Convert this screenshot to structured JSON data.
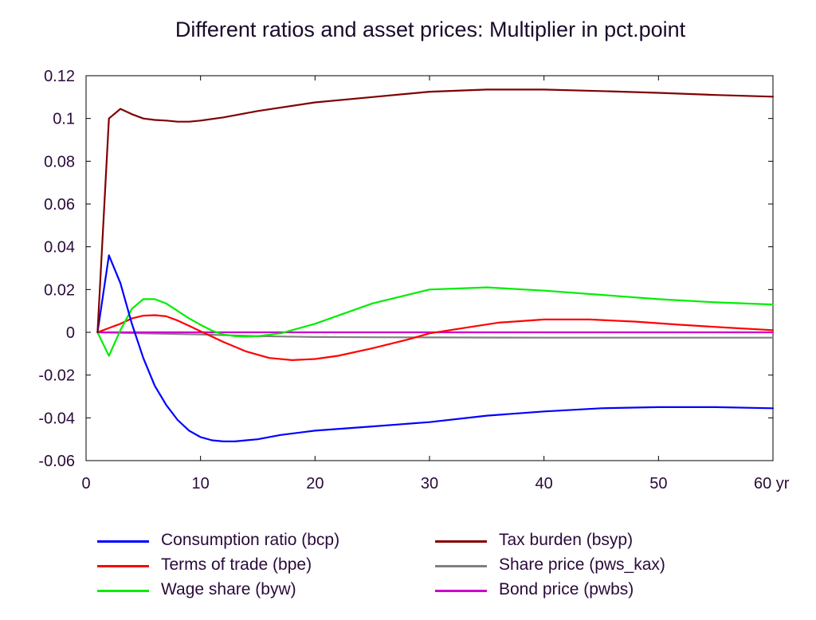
{
  "chart_data": {
    "type": "line",
    "title": "Different ratios and asset prices: Multiplier in pct.point",
    "xlabel": "",
    "ylabel": "",
    "xlim": [
      0,
      60
    ],
    "ylim": [
      -0.06,
      0.12
    ],
    "xticks": [
      0,
      10,
      20,
      30,
      40,
      50,
      60
    ],
    "xtick_labels": [
      "0",
      "10",
      "20",
      "30",
      "40",
      "50",
      "60 yr"
    ],
    "yticks": [
      0.12,
      0.1,
      0.08,
      0.06,
      0.04,
      0.02,
      0,
      -0.02,
      -0.04,
      -0.06
    ],
    "ytick_labels": [
      "0.12",
      "0.1",
      "0.08",
      "0.06",
      "0.04",
      "0.02",
      "0",
      "-0.02",
      "-0.04",
      "-0.06"
    ],
    "legend_position": "bottom",
    "series": [
      {
        "name": "Consumption ratio (bcp)",
        "color": "#0000ff",
        "x": [
          1,
          2,
          3,
          4,
          5,
          6,
          7,
          8,
          9,
          10,
          11,
          12,
          13,
          14,
          15,
          17,
          20,
          25,
          30,
          35,
          40,
          45,
          50,
          55,
          60
        ],
        "values": [
          0,
          0.036,
          0.023,
          0.004,
          -0.012,
          -0.025,
          -0.034,
          -0.041,
          -0.046,
          -0.049,
          -0.0505,
          -0.051,
          -0.051,
          -0.0505,
          -0.05,
          -0.048,
          -0.046,
          -0.044,
          -0.042,
          -0.039,
          -0.037,
          -0.0355,
          -0.035,
          -0.035,
          -0.0355
        ]
      },
      {
        "name": "Terms of trade (bpe)",
        "color": "#ff0000",
        "x": [
          1,
          2,
          3,
          4,
          5,
          6,
          7,
          8,
          9,
          10,
          12,
          14,
          16,
          18,
          20,
          22,
          25,
          28,
          30,
          33,
          36,
          40,
          44,
          48,
          52,
          56,
          60
        ],
        "values": [
          0,
          0.002,
          0.004,
          0.0065,
          0.0078,
          0.008,
          0.0075,
          0.0055,
          0.003,
          0.0005,
          -0.0045,
          -0.009,
          -0.012,
          -0.013,
          -0.0125,
          -0.011,
          -0.0075,
          -0.0035,
          -0.0005,
          0.002,
          0.0045,
          0.006,
          0.006,
          0.005,
          0.0035,
          0.0022,
          0.001
        ]
      },
      {
        "name": "Wage share (byw)",
        "color": "#00ee00",
        "x": [
          1,
          2,
          3,
          4,
          5,
          6,
          7,
          8,
          9,
          10,
          11,
          12,
          13,
          14,
          15,
          17,
          20,
          25,
          30,
          35,
          40,
          45,
          50,
          55,
          60
        ],
        "values": [
          0,
          -0.011,
          0.001,
          0.011,
          0.0155,
          0.0155,
          0.0135,
          0.01,
          0.0065,
          0.0035,
          0.0008,
          -0.001,
          -0.0018,
          -0.002,
          -0.0018,
          -0.0005,
          0.004,
          0.0135,
          0.02,
          0.021,
          0.0195,
          0.0175,
          0.0155,
          0.014,
          0.013
        ]
      },
      {
        "name": "Tax burden (bsyp)",
        "color": "#800000",
        "x": [
          1,
          2,
          3,
          4,
          5,
          6,
          7,
          8,
          9,
          10,
          12,
          15,
          20,
          25,
          30,
          35,
          40,
          45,
          50,
          55,
          60
        ],
        "values": [
          0,
          0.1,
          0.1045,
          0.102,
          0.1,
          0.0993,
          0.099,
          0.0985,
          0.0985,
          0.099,
          0.1005,
          0.1035,
          0.1075,
          0.11,
          0.1125,
          0.1135,
          0.1135,
          0.1128,
          0.112,
          0.111,
          0.1102
        ]
      },
      {
        "name": "Share price (pws_kax)",
        "color": "#808080",
        "x": [
          1,
          5,
          10,
          15,
          20,
          25,
          30,
          40,
          50,
          60
        ],
        "values": [
          0,
          -0.0005,
          -0.001,
          -0.0018,
          -0.0022,
          -0.0023,
          -0.0024,
          -0.0025,
          -0.0025,
          -0.0025
        ]
      },
      {
        "name": "Bond price (pwbs)",
        "color": "#cc00cc",
        "x": [
          1,
          10,
          20,
          30,
          40,
          50,
          60
        ],
        "values": [
          0,
          0,
          0,
          0,
          0,
          0,
          0
        ]
      }
    ]
  }
}
